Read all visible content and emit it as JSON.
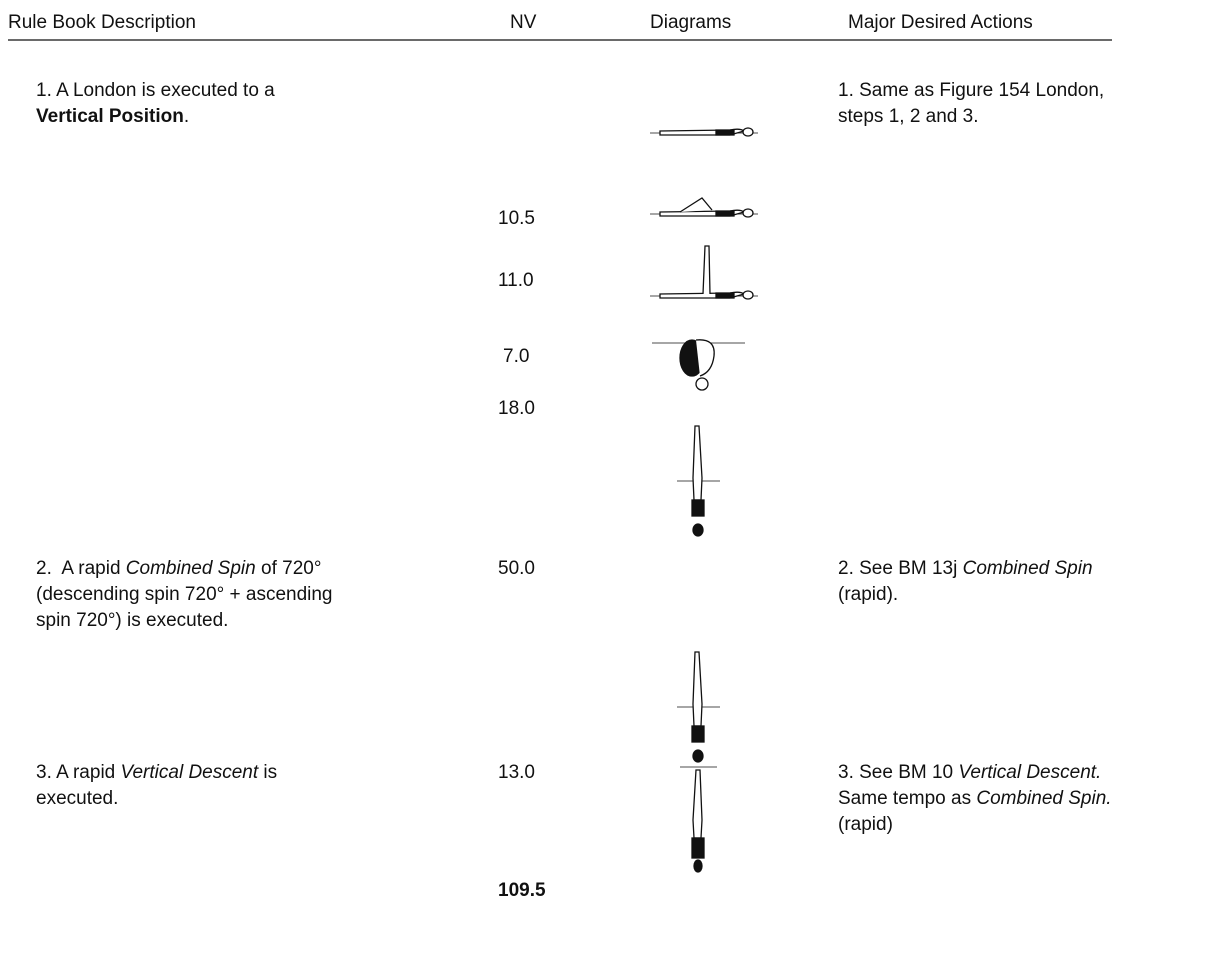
{
  "header": [
    "Rule Book Description",
    "NV",
    "Diagrams",
    "Major Desired Actions"
  ],
  "rows": [
    {
      "description": [
        [
          {
            "text": "1. A London is executed to a"
          }
        ],
        [
          {
            "text": "Vertical Position",
            "style": "bold"
          },
          {
            "text": "."
          }
        ]
      ],
      "nv": [
        "10.5",
        "11.0",
        "7.0",
        "18.0"
      ],
      "actions": [
        [
          {
            "text": "1. Same as Figure 154 London,"
          }
        ],
        [
          {
            "text": "steps 1, 2 and 3."
          }
        ]
      ]
    },
    {
      "description": [
        [
          {
            "text": "2.  A rapid "
          },
          {
            "text": "Combined Spin",
            "style": "italic"
          },
          {
            "text": " of 720°"
          }
        ],
        [
          {
            "text": "(descending spin 720° + ascending"
          }
        ],
        [
          {
            "text": "spin 720°) is executed."
          }
        ]
      ],
      "nv": [
        "50.0"
      ],
      "actions": [
        [
          {
            "text": "2. See BM 13j "
          },
          {
            "text": "Combined Spin",
            "style": "italic"
          }
        ],
        [
          {
            "text": "(rapid)."
          }
        ]
      ]
    },
    {
      "description": [
        [
          {
            "text": "3. A rapid "
          },
          {
            "text": "Vertical Descent",
            "style": "italic"
          },
          {
            "text": " is"
          }
        ],
        [
          {
            "text": "executed."
          }
        ]
      ],
      "nv": [
        "13.0"
      ],
      "actions": [
        [
          {
            "text": "3. See BM 10 "
          },
          {
            "text": "Vertical Descent.",
            "style": "italic"
          }
        ],
        [
          {
            "text": "Same tempo as "
          },
          {
            "text": "Combined Spin.",
            "style": "italic"
          }
        ],
        [
          {
            "text": "(rapid)"
          }
        ]
      ]
    }
  ],
  "total": "109.5"
}
